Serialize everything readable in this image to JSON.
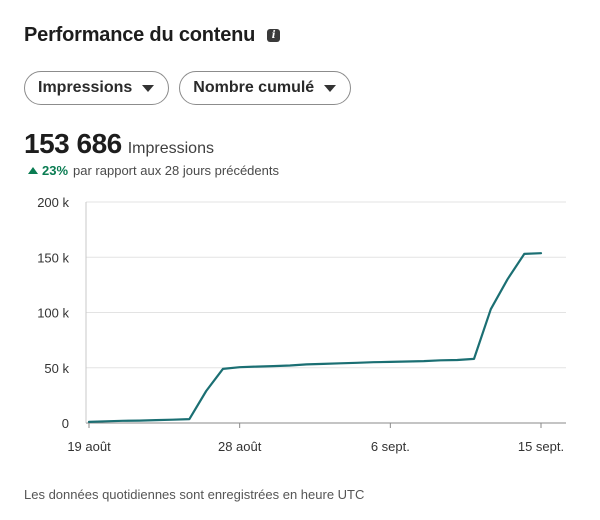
{
  "header": {
    "title": "Performance du contenu",
    "info_icon": "info-icon"
  },
  "filters": [
    {
      "label": "Impressions"
    },
    {
      "label": "Nombre cumulé"
    }
  ],
  "kpi": {
    "value": "153 686",
    "label": "Impressions",
    "delta_pct": "23%",
    "delta_text": "par rapport aux 28 jours précédents",
    "delta_color": "#0a7c52"
  },
  "footnote": "Les données quotidiennes sont enregistrées en heure UTC",
  "chart_data": {
    "type": "line",
    "title": "",
    "xlabel": "",
    "ylabel": "",
    "ylim": [
      0,
      200000
    ],
    "y_ticks": [
      {
        "value": 0,
        "label": "0"
      },
      {
        "value": 50000,
        "label": "50 k"
      },
      {
        "value": 100000,
        "label": "100 k"
      },
      {
        "value": 150000,
        "label": "150 k"
      },
      {
        "value": 200000,
        "label": "200 k"
      }
    ],
    "x_ticks": [
      {
        "day": "2024-08-19",
        "label": "19 août"
      },
      {
        "day": "2024-08-28",
        "label": "28 août"
      },
      {
        "day": "2024-09-06",
        "label": "6 sept."
      },
      {
        "day": "2024-09-15",
        "label": "15 sept."
      }
    ],
    "grid": true,
    "line_color": "#1b6f73",
    "series": [
      {
        "x": [
          "2024-08-19",
          "2024-08-20",
          "2024-08-21",
          "2024-08-22",
          "2024-08-23",
          "2024-08-24",
          "2024-08-25",
          "2024-08-26",
          "2024-08-27",
          "2024-08-28",
          "2024-08-29",
          "2024-08-30",
          "2024-08-31",
          "2024-09-01",
          "2024-09-02",
          "2024-09-03",
          "2024-09-04",
          "2024-09-05",
          "2024-09-06",
          "2024-09-07",
          "2024-09-08",
          "2024-09-09",
          "2024-09-10",
          "2024-09-11",
          "2024-09-12",
          "2024-09-13",
          "2024-09-14",
          "2024-09-15"
        ],
        "values": [
          1000,
          1500,
          2000,
          2200,
          2600,
          3000,
          3500,
          29000,
          49000,
          50500,
          51000,
          51500,
          52000,
          53000,
          53500,
          54000,
          54500,
          55000,
          55300,
          55700,
          56000,
          56700,
          57000,
          58000,
          103000,
          130000,
          153000,
          153686
        ]
      }
    ]
  }
}
